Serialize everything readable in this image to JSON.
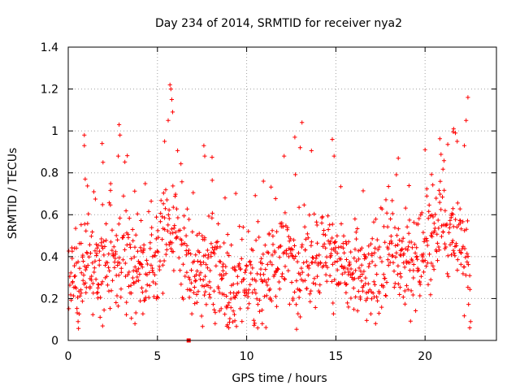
{
  "chart_data": {
    "type": "scatter",
    "title": "Day 234 of 2014, SRMTID for receiver nya2",
    "xlabel": "GPS time / hours",
    "ylabel": "SRMTID / TECUs",
    "xlim": [
      0,
      24
    ],
    "ylim": [
      0,
      1.4
    ],
    "xticks": [
      0,
      5,
      10,
      15,
      20
    ],
    "xtick_labels": [
      "0",
      "5",
      "10",
      "15",
      "20"
    ],
    "yticks": [
      0,
      0.2,
      0.4,
      0.6,
      0.8,
      1.0,
      1.2,
      1.4
    ],
    "ytick_labels": [
      "0",
      "0.2",
      "0.4",
      "0.6",
      "0.8",
      "1",
      "1.2",
      "1.4"
    ],
    "grid": true,
    "marker": "+",
    "color": "#ff0000",
    "series": [
      {
        "name": "SRMTID",
        "x_start": 0.0,
        "x_end": 22.5,
        "x_step": 0.05,
        "trend_hours": [
          0,
          0.5,
          1,
          1.5,
          2,
          3,
          4,
          5,
          5.5,
          6,
          6.5,
          7,
          8,
          9,
          10,
          11,
          12,
          13,
          14,
          15,
          16,
          17,
          18,
          19,
          20,
          21,
          21.5,
          22,
          22.5
        ],
        "trend_values": [
          0.28,
          0.3,
          0.35,
          0.36,
          0.37,
          0.4,
          0.35,
          0.38,
          0.55,
          0.55,
          0.38,
          0.32,
          0.36,
          0.26,
          0.25,
          0.3,
          0.4,
          0.36,
          0.42,
          0.4,
          0.32,
          0.28,
          0.4,
          0.36,
          0.45,
          0.58,
          0.5,
          0.48,
          0.3
        ],
        "spread": 0.12,
        "spikes": [
          {
            "x": 0.9,
            "y": 0.98
          },
          {
            "x": 0.9,
            "y": 0.93
          },
          {
            "x": 0.95,
            "y": 0.77
          },
          {
            "x": 1.9,
            "y": 0.94
          },
          {
            "x": 1.95,
            "y": 0.85
          },
          {
            "x": 2.85,
            "y": 1.03
          },
          {
            "x": 2.9,
            "y": 0.98
          },
          {
            "x": 2.8,
            "y": 0.88
          },
          {
            "x": 5.7,
            "y": 1.22
          },
          {
            "x": 5.75,
            "y": 1.2
          },
          {
            "x": 5.8,
            "y": 1.15
          },
          {
            "x": 5.85,
            "y": 1.09
          },
          {
            "x": 5.6,
            "y": 1.05
          },
          {
            "x": 5.4,
            "y": 0.95
          },
          {
            "x": 7.6,
            "y": 0.93
          },
          {
            "x": 7.65,
            "y": 0.88
          },
          {
            "x": 12.1,
            "y": 0.88
          },
          {
            "x": 12.7,
            "y": 0.97
          },
          {
            "x": 13.1,
            "y": 1.04
          },
          {
            "x": 13.0,
            "y": 0.92
          },
          {
            "x": 14.8,
            "y": 0.96
          },
          {
            "x": 14.9,
            "y": 0.88
          },
          {
            "x": 18.5,
            "y": 0.87
          },
          {
            "x": 20.0,
            "y": 0.91
          },
          {
            "x": 21.6,
            "y": 1.01
          },
          {
            "x": 21.7,
            "y": 0.99
          },
          {
            "x": 21.8,
            "y": 0.95
          },
          {
            "x": 22.4,
            "y": 1.16
          },
          {
            "x": 22.3,
            "y": 1.05
          },
          {
            "x": 22.2,
            "y": 0.93
          },
          {
            "x": 9.0,
            "y": 0.06
          },
          {
            "x": 0.55,
            "y": 0.09
          },
          {
            "x": 22.5,
            "y": 0.06
          },
          {
            "x": 22.55,
            "y": 0.09
          }
        ]
      }
    ],
    "outlier_marker": {
      "x": 6.75,
      "y": 0.0
    }
  }
}
